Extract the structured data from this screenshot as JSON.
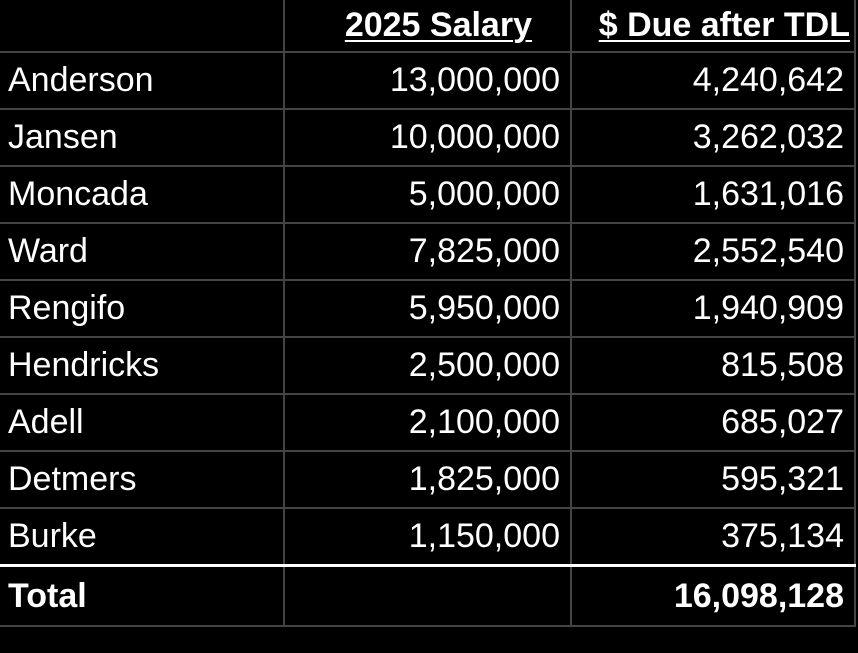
{
  "table": {
    "headers": [
      "",
      "2025 Salary",
      "$ Due after TDL"
    ],
    "rows": [
      {
        "name": "Anderson",
        "salary": "13,000,000",
        "due": "4,240,642"
      },
      {
        "name": "Jansen",
        "salary": "10,000,000",
        "due": "3,262,032"
      },
      {
        "name": "Moncada",
        "salary": "5,000,000",
        "due": "1,631,016"
      },
      {
        "name": "Ward",
        "salary": "7,825,000",
        "due": "2,552,540"
      },
      {
        "name": "Rengifo",
        "salary": "5,950,000",
        "due": "1,940,909"
      },
      {
        "name": "Hendricks",
        "salary": "2,500,000",
        "due": "815,508"
      },
      {
        "name": "Adell",
        "salary": "2,100,000",
        "due": "685,027"
      },
      {
        "name": "Detmers",
        "salary": "1,825,000",
        "due": "595,321"
      },
      {
        "name": "Burke",
        "salary": "1,150,000",
        "due": "375,134"
      }
    ],
    "total": {
      "label": "Total",
      "salary": "",
      "due": "16,098,128"
    }
  },
  "colors": {
    "background": "#000000",
    "text": "#ffffff",
    "gridline": "#444444"
  }
}
